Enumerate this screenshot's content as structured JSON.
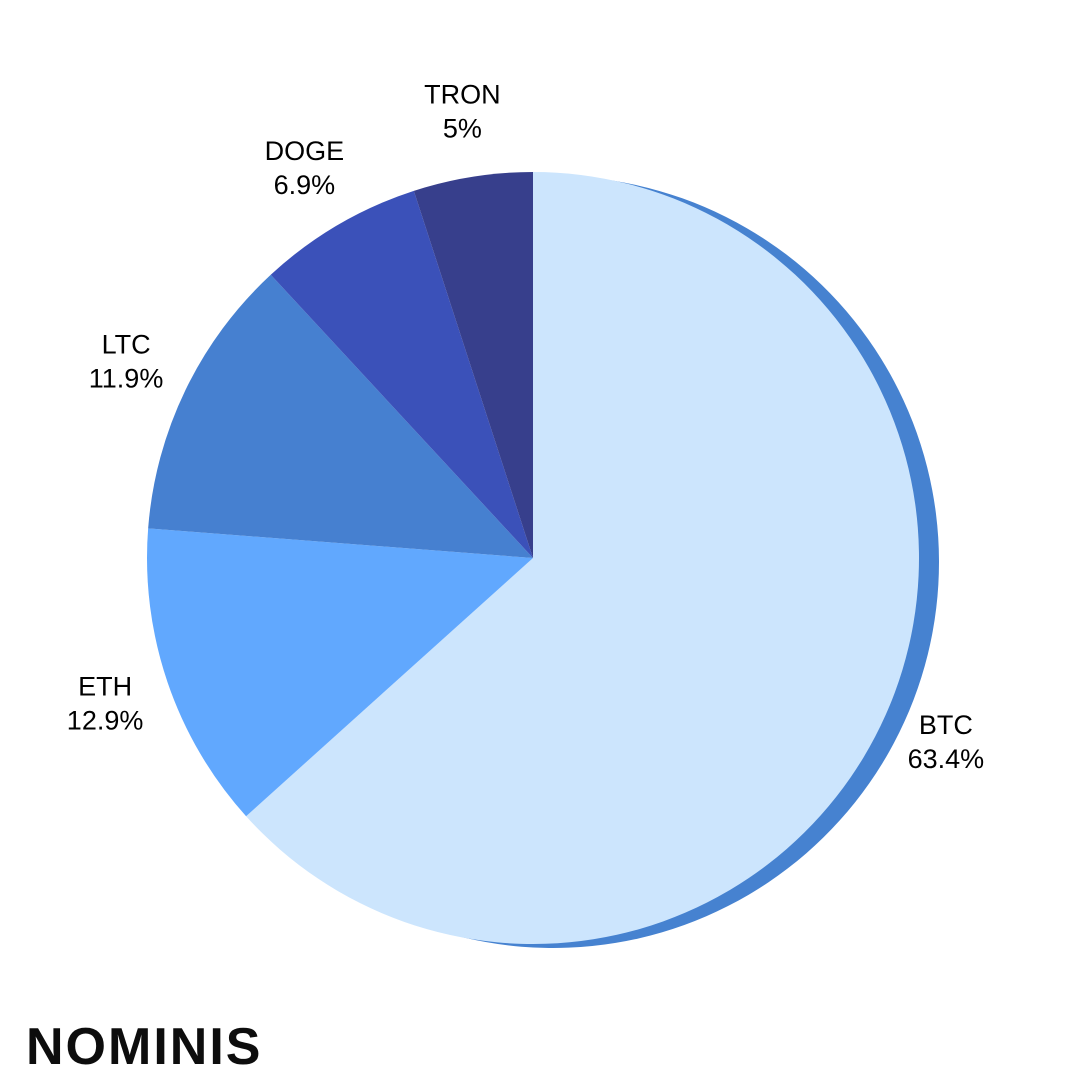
{
  "chart_data": {
    "type": "pie",
    "categories": [
      "BTC",
      "ETH",
      "LTC",
      "DOGE",
      "TRON"
    ],
    "values": [
      63.4,
      12.9,
      11.9,
      6.9,
      5
    ],
    "value_labels": [
      "63.4%",
      "12.9%",
      "11.9%",
      "6.9%",
      "5%"
    ],
    "colors": [
      "#cce5fd",
      "#61a8fe",
      "#4680d0",
      "#3b51b9",
      "#373f8c"
    ],
    "highlight_color": "#4682d0"
  },
  "logo": "NOMINIS"
}
